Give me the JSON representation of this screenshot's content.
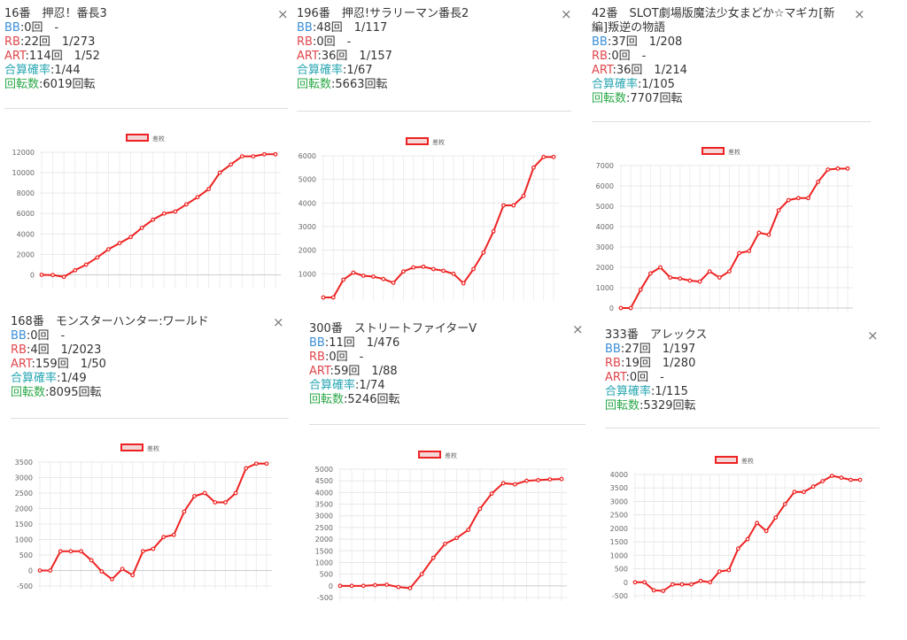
{
  "colors": {
    "bb": "#3b8ed8",
    "rb": "#e0474c",
    "art": "#e0474c",
    "combined": "#2aa7b3",
    "spins": "#2aa847",
    "series": "#ee2222"
  },
  "labels": {
    "bb": "BB",
    "rb": "RB",
    "art": "ART",
    "combined": "合算確率",
    "spins": "回転数"
  },
  "close_icon": "×",
  "machines": [
    {
      "title": "16番　押忍！番長3",
      "bb": ":0回　-",
      "rb": ":22回　1/273",
      "art": ":114回　1/52",
      "combined": ":1/44",
      "spins": ":6019回転",
      "chart_data": {
        "type": "line",
        "legend": "差枚",
        "ylim": [
          -1000,
          12000
        ],
        "yticks": [
          0,
          2000,
          4000,
          6000,
          8000,
          10000,
          12000
        ],
        "values": [
          0,
          -20,
          -200,
          450,
          1000,
          1700,
          2500,
          3100,
          3700,
          4600,
          5400,
          6000,
          6200,
          6900,
          7600,
          8400,
          10000,
          10800,
          11600,
          11600,
          11800,
          11800
        ]
      }
    },
    {
      "title": "196番　押忍!サラリーマン番長2",
      "bb": ":48回　1/117",
      "rb": ":0回　-",
      "art": ":36回　1/157",
      "combined": ":1/67",
      "spins": ":5663回転",
      "chart_data": {
        "type": "line",
        "legend": "差枚",
        "ylim": [
          0,
          6000
        ],
        "yticks": [
          1000,
          2000,
          3000,
          4000,
          5000,
          6000
        ],
        "values": [
          0,
          0,
          750,
          1050,
          920,
          880,
          780,
          620,
          1100,
          1270,
          1300,
          1200,
          1130,
          1000,
          600,
          1200,
          1900,
          2800,
          3900,
          3900,
          4300,
          5500,
          5950,
          5950
        ]
      }
    },
    {
      "title": "42番　SLOT劇場版魔法少女まどか☆マギカ[新編]叛逆の物語",
      "bb": ":37回　1/208",
      "rb": ":0回　-",
      "art": ":36回　1/214",
      "combined": ":1/105",
      "spins": ":7707回転",
      "chart_data": {
        "type": "line",
        "legend": "差枚",
        "ylim": [
          0,
          7000
        ],
        "yticks": [
          0,
          1000,
          2000,
          3000,
          4000,
          5000,
          6000,
          7000
        ],
        "values": [
          0,
          0,
          900,
          1700,
          2000,
          1500,
          1450,
          1350,
          1300,
          1800,
          1500,
          1800,
          2700,
          2800,
          3700,
          3600,
          4800,
          5300,
          5400,
          5400,
          6200,
          6800,
          6850,
          6850
        ]
      }
    },
    {
      "title": "168番　モンスターハンター:ワールド",
      "bb": ":0回　-",
      "rb": ":4回　1/2023",
      "art": ":159回　1/50",
      "combined": ":1/49",
      "spins": ":8095回転",
      "chart_data": {
        "type": "line",
        "legend": "差枚",
        "ylim": [
          -500,
          3500
        ],
        "yticks": [
          -500,
          0,
          500,
          1000,
          1500,
          2000,
          2500,
          3000,
          3500
        ],
        "values": [
          0,
          0,
          620,
          620,
          620,
          330,
          -30,
          -280,
          50,
          -150,
          620,
          700,
          1080,
          1150,
          1900,
          2400,
          2500,
          2200,
          2200,
          2500,
          3300,
          3450,
          3450
        ]
      }
    },
    {
      "title": "300番　ストリートファイターV",
      "bb": ":11回　1/476",
      "rb": ":0回　-",
      "art": ":59回　1/88",
      "combined": ":1/74",
      "spins": ":5246回転",
      "chart_data": {
        "type": "line",
        "legend": "差枚",
        "ylim": [
          -500,
          5000
        ],
        "yticks": [
          -500,
          0,
          500,
          1000,
          1500,
          2000,
          2500,
          3000,
          3500,
          4000,
          4500,
          5000
        ],
        "values": [
          0,
          0,
          0,
          30,
          50,
          -50,
          -100,
          500,
          1200,
          1800,
          2050,
          2400,
          3300,
          3950,
          4400,
          4350,
          4500,
          4530,
          4560,
          4580
        ]
      }
    },
    {
      "title": "333番　アレックス",
      "bb": ":27回　1/197",
      "rb": ":19回　1/280",
      "art": ":0回　-",
      "combined": ":1/115",
      "spins": ":5329回転",
      "chart_data": {
        "type": "line",
        "legend": "差枚",
        "ylim": [
          -500,
          4000
        ],
        "yticks": [
          -500,
          0,
          500,
          1000,
          1500,
          2000,
          2500,
          3000,
          3500,
          4000
        ],
        "values": [
          0,
          0,
          -300,
          -320,
          -80,
          -80,
          -80,
          50,
          0,
          400,
          450,
          1250,
          1600,
          2200,
          1900,
          2400,
          2900,
          3350,
          3350,
          3550,
          3750,
          3950,
          3880,
          3800,
          3800
        ]
      }
    }
  ]
}
